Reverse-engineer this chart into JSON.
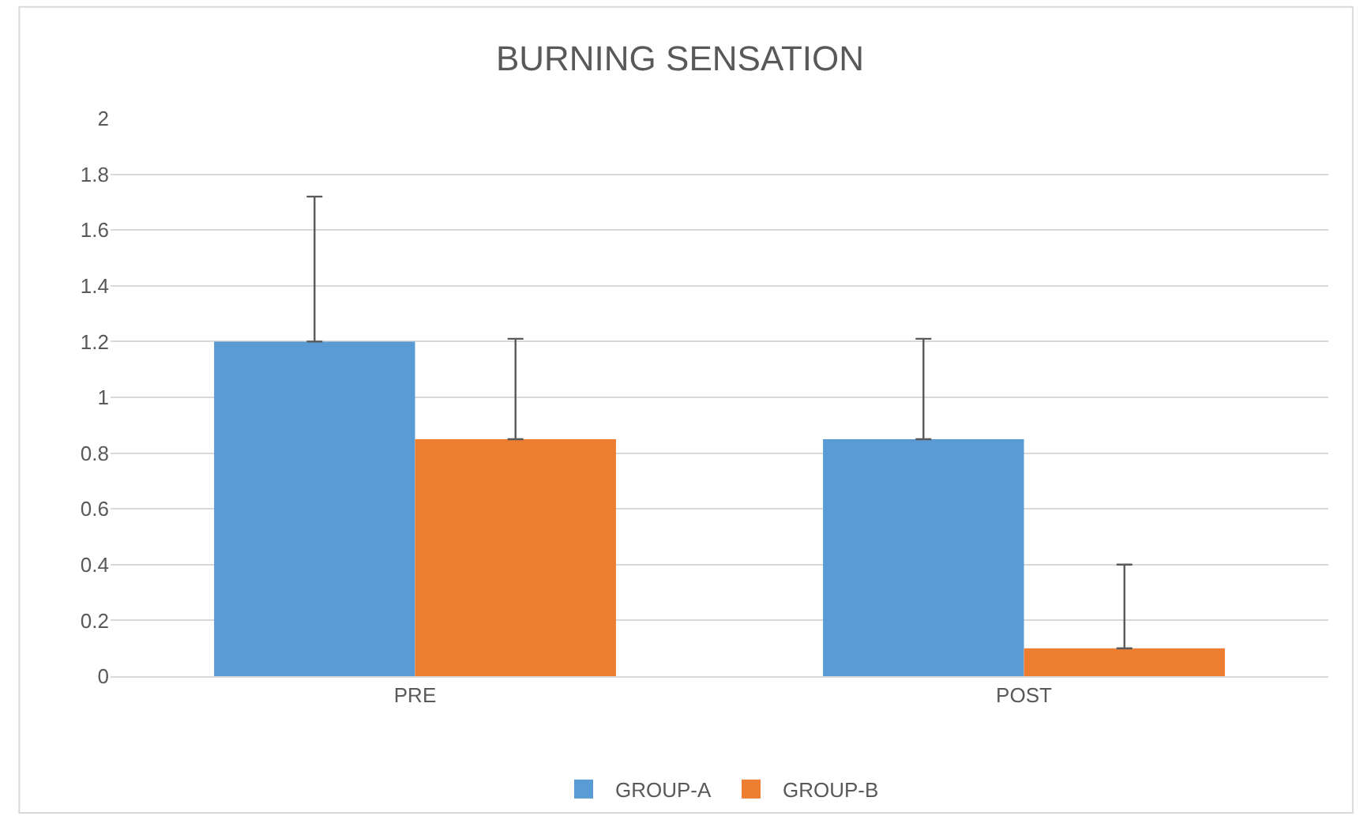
{
  "chart_data": {
    "type": "bar",
    "title": "BURNING SENSATION",
    "categories": [
      "PRE",
      "POST"
    ],
    "series": [
      {
        "name": "GROUP-A",
        "color": "#5b9bd5",
        "values": [
          1.2,
          0.85
        ],
        "errors": [
          [
            1.2,
            1.72
          ],
          [
            0.85,
            1.21
          ]
        ]
      },
      {
        "name": "GROUP-B",
        "color": "#ed7d31",
        "values": [
          0.85,
          0.1
        ],
        "errors": [
          [
            0.85,
            1.21
          ],
          [
            0.1,
            0.4
          ]
        ]
      }
    ],
    "ylim": [
      0,
      2
    ],
    "yticks": [
      0,
      0.2,
      0.4,
      0.6,
      0.8,
      1,
      1.2,
      1.4,
      1.6,
      1.8,
      2
    ],
    "grid": "y",
    "legend": "bottom"
  }
}
